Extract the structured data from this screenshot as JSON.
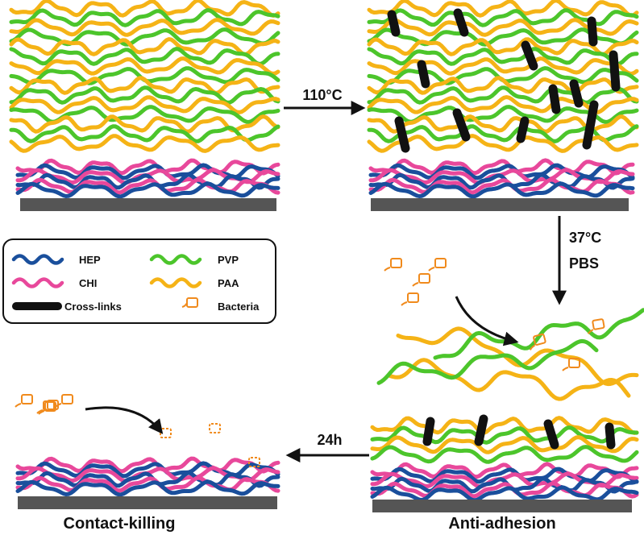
{
  "colors": {
    "hep": "#1a4f9c",
    "chi": "#e8489b",
    "pvp": "#4cc52b",
    "paa": "#f5b316",
    "crosslink": "#111111",
    "bacteria": "#f08a1c",
    "substrate": "#555555"
  },
  "steps": {
    "heat": "110°C",
    "incubate_temp": "37°C",
    "incubate_medium": "PBS",
    "time": "24h"
  },
  "captions": {
    "bottom_left": "Contact-killing",
    "bottom_right": "Anti-adhesion"
  },
  "legend": {
    "hep": "HEP",
    "chi": "CHI",
    "pvp": "PVP",
    "paa": "PAA",
    "crosslinks": "Cross-links",
    "bacteria": "Bacteria"
  }
}
